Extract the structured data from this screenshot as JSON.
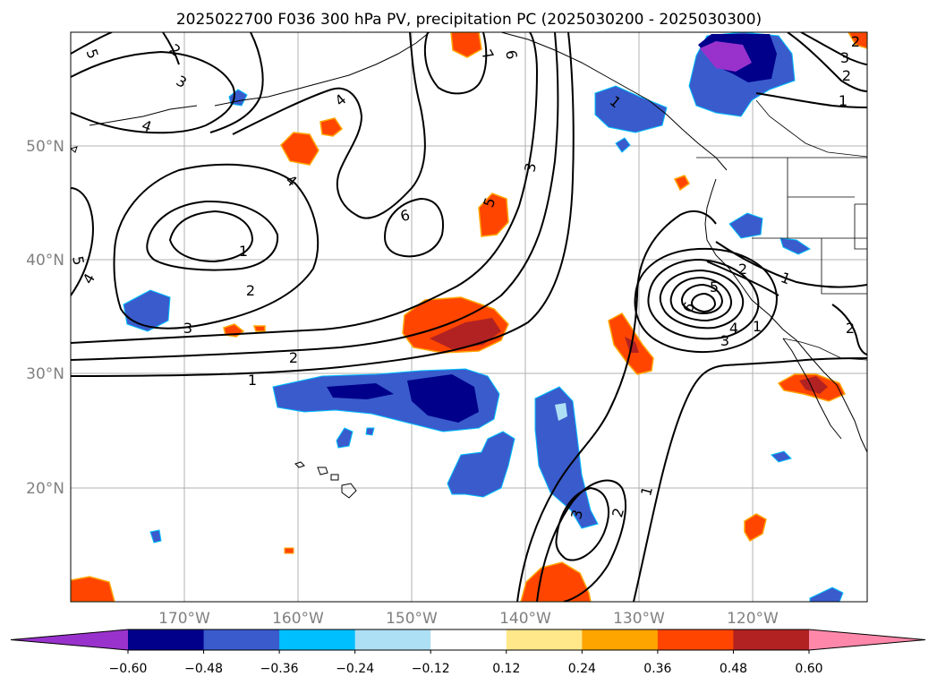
{
  "title": "2025022700 F036 300 hPa PV, precipitation PC (2025030200 - 2025030300)",
  "lat_labels": [
    "50°N",
    "40°N",
    "30°N",
    "20°N"
  ],
  "lon_labels": [
    "170°W",
    "160°W",
    "150°W",
    "140°W",
    "130°W",
    "120°W"
  ],
  "colorbar": {
    "colors": [
      "#9932cc",
      "#00008b",
      "#3a5bcc",
      "#00bfff",
      "#aee0f5",
      "#ffffff",
      "#ffe88a",
      "#ffa500",
      "#ff4500",
      "#b22222",
      "#ff88aa"
    ],
    "ticks": [
      "−0.60",
      "−0.48",
      "−0.36",
      "−0.24",
      "−0.12",
      "0.12",
      "0.24",
      "0.36",
      "0.48",
      "0.60"
    ]
  },
  "contour_labels": [
    "5",
    "2",
    "3",
    "4",
    "7",
    "6",
    "1",
    "2",
    "3",
    "6",
    "4",
    "1",
    "2",
    "5",
    "3",
    "4",
    "1",
    "2",
    "3",
    "6",
    "5",
    "4",
    "3",
    "2",
    "1",
    "2",
    "1",
    "4",
    "1",
    "5",
    "3",
    "2",
    "1",
    "2"
  ]
}
